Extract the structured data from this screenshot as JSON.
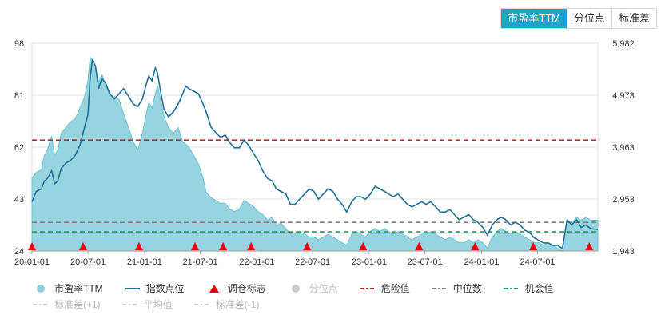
{
  "tabs": [
    {
      "label": "市盈率TTM",
      "active": true
    },
    {
      "label": "分位点",
      "active": false
    },
    {
      "label": "标准差",
      "active": false
    }
  ],
  "legend": {
    "row1": [
      {
        "label": "市盈率TTM",
        "symbol": "dot",
        "color": "#8ccfdb",
        "dim": false
      },
      {
        "label": "指数点位",
        "symbol": "line",
        "color": "#1f6f96",
        "dim": false
      },
      {
        "label": "调仓标志",
        "symbol": "triangle",
        "color": "#e8000b",
        "dim": false
      },
      {
        "label": "分位点",
        "symbol": "dot",
        "color": "#cccccc",
        "dim": true
      },
      {
        "label": "危险值",
        "symbol": "dash",
        "color": "#c0272d",
        "dim": false
      },
      {
        "label": "中位数",
        "symbol": "dash",
        "color": "#808080",
        "dim": false
      },
      {
        "label": "机会值",
        "symbol": "dash",
        "color": "#1f9e57",
        "dim": false
      }
    ],
    "row2": [
      {
        "label": "标准差(+1)",
        "symbol": "dash",
        "color": "#cccccc",
        "dim": true
      },
      {
        "label": "平均值",
        "symbol": "dash",
        "color": "#cccccc",
        "dim": true
      },
      {
        "label": "标准差(-1)",
        "symbol": "dash",
        "color": "#cccccc",
        "dim": true
      }
    ]
  },
  "chart_data": {
    "type": "area",
    "x_ticks": [
      "20-01-01",
      "20-07-01",
      "21-01-01",
      "21-07-01",
      "22-01-01",
      "22-07-01",
      "23-01-01",
      "23-07-01",
      "24-01-01",
      "24-07-01"
    ],
    "x_range": [
      "2020-01-01",
      "2025-01-13"
    ],
    "y_left": {
      "ticks": [
        "98",
        "81",
        "62",
        "43",
        "24"
      ],
      "range": [
        24,
        98
      ]
    },
    "y_right": {
      "ticks": [
        "5,982",
        "4,973",
        "3,963",
        "2,953",
        "1,943"
      ],
      "range": [
        1943,
        5982
      ]
    },
    "colors": {
      "pe_fill": "#8ccfdb",
      "pe_stroke": "#6fc3d2",
      "index": "#1f6f96",
      "marker": "#e8000b",
      "danger": "#c0272d",
      "median": "#808080",
      "opportunity": "#1f9e57",
      "grid": "#e6e6e6"
    },
    "reference_lines": {
      "danger": 63.5,
      "median": 34.2,
      "opportunity": 30.8
    },
    "pe_ttm": [
      [
        "2020-01-01",
        50
      ],
      [
        "2020-01-15",
        52
      ],
      [
        "2020-02-01",
        53
      ],
      [
        "2020-02-10",
        58
      ],
      [
        "2020-02-20",
        60
      ],
      [
        "2020-03-05",
        65
      ],
      [
        "2020-03-15",
        58
      ],
      [
        "2020-03-25",
        60
      ],
      [
        "2020-04-05",
        66
      ],
      [
        "2020-04-20",
        68
      ],
      [
        "2020-05-05",
        70
      ],
      [
        "2020-05-20",
        71
      ],
      [
        "2020-06-05",
        75
      ],
      [
        "2020-06-20",
        79
      ],
      [
        "2020-07-01",
        85
      ],
      [
        "2020-07-08",
        93
      ],
      [
        "2020-07-15",
        92
      ],
      [
        "2020-07-25",
        90
      ],
      [
        "2020-08-05",
        84
      ],
      [
        "2020-08-15",
        87
      ],
      [
        "2020-08-28",
        83
      ],
      [
        "2020-09-10",
        79
      ],
      [
        "2020-09-25",
        79
      ],
      [
        "2020-10-10",
        78
      ],
      [
        "2020-10-25",
        73
      ],
      [
        "2020-11-10",
        68
      ],
      [
        "2020-11-25",
        63
      ],
      [
        "2020-12-10",
        60
      ],
      [
        "2020-12-25",
        66
      ],
      [
        "2021-01-05",
        72
      ],
      [
        "2021-01-15",
        77
      ],
      [
        "2021-01-25",
        75
      ],
      [
        "2021-02-05",
        80
      ],
      [
        "2021-02-12",
        83
      ],
      [
        "2021-02-22",
        78
      ],
      [
        "2021-03-05",
        72
      ],
      [
        "2021-03-20",
        68
      ],
      [
        "2021-04-05",
        66
      ],
      [
        "2021-04-20",
        68
      ],
      [
        "2021-05-05",
        63
      ],
      [
        "2021-05-15",
        62
      ],
      [
        "2021-05-25",
        61
      ],
      [
        "2021-06-10",
        58
      ],
      [
        "2021-06-25",
        55
      ],
      [
        "2021-07-10",
        50
      ],
      [
        "2021-07-20",
        45
      ],
      [
        "2021-08-05",
        43
      ],
      [
        "2021-08-20",
        42
      ],
      [
        "2021-09-05",
        41
      ],
      [
        "2021-09-20",
        41
      ],
      [
        "2021-10-05",
        39
      ],
      [
        "2021-10-20",
        38
      ],
      [
        "2021-11-05",
        39
      ],
      [
        "2021-11-20",
        42
      ],
      [
        "2021-12-05",
        41
      ],
      [
        "2021-12-20",
        40
      ],
      [
        "2022-01-05",
        38
      ],
      [
        "2022-01-20",
        37
      ],
      [
        "2022-02-05",
        35
      ],
      [
        "2022-02-20",
        36
      ],
      [
        "2022-03-05",
        33
      ],
      [
        "2022-03-20",
        34
      ],
      [
        "2022-04-05",
        32
      ],
      [
        "2022-04-20",
        30
      ],
      [
        "2022-05-05",
        30
      ],
      [
        "2022-05-20",
        31
      ],
      [
        "2022-06-05",
        30
      ],
      [
        "2022-06-20",
        29
      ],
      [
        "2022-07-05",
        29
      ],
      [
        "2022-07-20",
        28
      ],
      [
        "2022-08-05",
        29
      ],
      [
        "2022-08-20",
        30
      ],
      [
        "2022-09-05",
        29
      ],
      [
        "2022-09-20",
        28
      ],
      [
        "2022-10-05",
        27
      ],
      [
        "2022-10-20",
        26
      ],
      [
        "2022-11-05",
        30
      ],
      [
        "2022-11-20",
        31
      ],
      [
        "2022-12-05",
        30
      ],
      [
        "2022-12-20",
        29
      ],
      [
        "2023-01-05",
        31
      ],
      [
        "2023-01-20",
        32
      ],
      [
        "2023-02-05",
        31
      ],
      [
        "2023-02-20",
        32
      ],
      [
        "2023-03-05",
        31
      ],
      [
        "2023-03-20",
        30
      ],
      [
        "2023-04-05",
        31
      ],
      [
        "2023-04-20",
        30
      ],
      [
        "2023-05-05",
        29
      ],
      [
        "2023-05-20",
        28
      ],
      [
        "2023-06-05",
        29
      ],
      [
        "2023-06-20",
        30
      ],
      [
        "2023-07-05",
        30
      ],
      [
        "2023-07-20",
        31
      ],
      [
        "2023-08-05",
        30
      ],
      [
        "2023-08-20",
        29
      ],
      [
        "2023-09-05",
        28
      ],
      [
        "2023-09-20",
        29
      ],
      [
        "2023-10-05",
        28
      ],
      [
        "2023-10-20",
        27
      ],
      [
        "2023-11-05",
        27
      ],
      [
        "2023-11-20",
        28
      ],
      [
        "2023-12-05",
        27
      ],
      [
        "2023-12-20",
        28
      ],
      [
        "2024-01-05",
        27
      ],
      [
        "2024-01-20",
        25
      ],
      [
        "2024-02-05",
        29
      ],
      [
        "2024-02-20",
        31
      ],
      [
        "2024-03-05",
        32
      ],
      [
        "2024-03-20",
        31
      ],
      [
        "2024-04-05",
        30
      ],
      [
        "2024-04-20",
        31
      ],
      [
        "2024-05-05",
        30
      ],
      [
        "2024-05-20",
        29
      ],
      [
        "2024-06-05",
        28
      ],
      [
        "2024-06-20",
        27
      ],
      [
        "2024-07-05",
        27
      ],
      [
        "2024-07-20",
        26
      ],
      [
        "2024-08-05",
        27
      ],
      [
        "2024-08-20",
        26
      ],
      [
        "2024-09-05",
        25
      ],
      [
        "2024-09-20",
        24
      ],
      [
        "2024-09-28",
        30
      ],
      [
        "2024-10-05",
        35
      ],
      [
        "2024-10-20",
        34
      ],
      [
        "2024-11-05",
        36
      ],
      [
        "2024-11-20",
        35
      ],
      [
        "2024-12-05",
        36
      ],
      [
        "2024-12-20",
        35
      ],
      [
        "2025-01-13",
        35
      ]
    ],
    "index_points": [
      [
        "2020-01-01",
        2900
      ],
      [
        "2020-01-15",
        3100
      ],
      [
        "2020-02-01",
        3150
      ],
      [
        "2020-02-10",
        3300
      ],
      [
        "2020-02-20",
        3350
      ],
      [
        "2020-03-05",
        3500
      ],
      [
        "2020-03-15",
        3250
      ],
      [
        "2020-03-25",
        3300
      ],
      [
        "2020-04-05",
        3550
      ],
      [
        "2020-04-20",
        3650
      ],
      [
        "2020-05-05",
        3700
      ],
      [
        "2020-05-20",
        3800
      ],
      [
        "2020-06-05",
        4000
      ],
      [
        "2020-06-20",
        4350
      ],
      [
        "2020-07-01",
        4600
      ],
      [
        "2020-07-08",
        5300
      ],
      [
        "2020-07-15",
        5650
      ],
      [
        "2020-07-25",
        5550
      ],
      [
        "2020-08-05",
        5100
      ],
      [
        "2020-08-15",
        5300
      ],
      [
        "2020-08-28",
        5200
      ],
      [
        "2020-09-10",
        5000
      ],
      [
        "2020-09-25",
        4900
      ],
      [
        "2020-10-10",
        5000
      ],
      [
        "2020-10-25",
        5100
      ],
      [
        "2020-11-10",
        4950
      ],
      [
        "2020-11-25",
        4800
      ],
      [
        "2020-12-10",
        4750
      ],
      [
        "2020-12-25",
        4900
      ],
      [
        "2021-01-05",
        5150
      ],
      [
        "2021-01-15",
        5350
      ],
      [
        "2021-01-25",
        5250
      ],
      [
        "2021-02-05",
        5500
      ],
      [
        "2021-02-12",
        5400
      ],
      [
        "2021-02-22",
        5050
      ],
      [
        "2021-03-05",
        4700
      ],
      [
        "2021-03-20",
        4550
      ],
      [
        "2021-04-05",
        4650
      ],
      [
        "2021-04-20",
        4800
      ],
      [
        "2021-05-05",
        5000
      ],
      [
        "2021-05-15",
        5150
      ],
      [
        "2021-05-25",
        5100
      ],
      [
        "2021-06-10",
        5050
      ],
      [
        "2021-06-25",
        5000
      ],
      [
        "2021-07-10",
        4800
      ],
      [
        "2021-07-20",
        4650
      ],
      [
        "2021-08-05",
        4350
      ],
      [
        "2021-08-20",
        4250
      ],
      [
        "2021-09-05",
        4150
      ],
      [
        "2021-09-20",
        4200
      ],
      [
        "2021-10-05",
        4050
      ],
      [
        "2021-10-20",
        3950
      ],
      [
        "2021-11-05",
        3950
      ],
      [
        "2021-11-20",
        4100
      ],
      [
        "2021-12-05",
        4000
      ],
      [
        "2021-12-20",
        3850
      ],
      [
        "2022-01-05",
        3700
      ],
      [
        "2022-01-20",
        3500
      ],
      [
        "2022-02-05",
        3350
      ],
      [
        "2022-02-20",
        3300
      ],
      [
        "2022-03-05",
        3150
      ],
      [
        "2022-03-20",
        3100
      ],
      [
        "2022-04-05",
        3050
      ],
      [
        "2022-04-20",
        2850
      ],
      [
        "2022-05-05",
        2850
      ],
      [
        "2022-05-20",
        2950
      ],
      [
        "2022-06-05",
        3050
      ],
      [
        "2022-06-20",
        3150
      ],
      [
        "2022-07-05",
        3100
      ],
      [
        "2022-07-20",
        2950
      ],
      [
        "2022-08-05",
        3050
      ],
      [
        "2022-08-20",
        3150
      ],
      [
        "2022-09-05",
        3100
      ],
      [
        "2022-09-20",
        2950
      ],
      [
        "2022-10-05",
        2850
      ],
      [
        "2022-10-20",
        2700
      ],
      [
        "2022-11-05",
        2900
      ],
      [
        "2022-11-20",
        3000
      ],
      [
        "2022-12-05",
        3000
      ],
      [
        "2022-12-20",
        2950
      ],
      [
        "2023-01-05",
        3050
      ],
      [
        "2023-01-20",
        3200
      ],
      [
        "2023-02-05",
        3150
      ],
      [
        "2023-02-20",
        3100
      ],
      [
        "2023-03-05",
        3050
      ],
      [
        "2023-03-20",
        3000
      ],
      [
        "2023-04-05",
        3050
      ],
      [
        "2023-04-20",
        2950
      ],
      [
        "2023-05-05",
        2850
      ],
      [
        "2023-05-20",
        2800
      ],
      [
        "2023-06-05",
        2850
      ],
      [
        "2023-06-20",
        2900
      ],
      [
        "2023-07-05",
        2850
      ],
      [
        "2023-07-20",
        2900
      ],
      [
        "2023-08-05",
        2800
      ],
      [
        "2023-08-20",
        2700
      ],
      [
        "2023-09-05",
        2700
      ],
      [
        "2023-09-20",
        2750
      ],
      [
        "2023-10-05",
        2650
      ],
      [
        "2023-10-20",
        2550
      ],
      [
        "2023-11-05",
        2600
      ],
      [
        "2023-11-20",
        2650
      ],
      [
        "2023-12-05",
        2550
      ],
      [
        "2023-12-20",
        2500
      ],
      [
        "2024-01-05",
        2400
      ],
      [
        "2024-01-20",
        2250
      ],
      [
        "2024-02-05",
        2450
      ],
      [
        "2024-02-20",
        2550
      ],
      [
        "2024-03-05",
        2600
      ],
      [
        "2024-03-20",
        2550
      ],
      [
        "2024-04-05",
        2450
      ],
      [
        "2024-04-20",
        2500
      ],
      [
        "2024-05-05",
        2450
      ],
      [
        "2024-05-20",
        2350
      ],
      [
        "2024-06-05",
        2300
      ],
      [
        "2024-06-20",
        2200
      ],
      [
        "2024-07-05",
        2150
      ],
      [
        "2024-07-20",
        2100
      ],
      [
        "2024-08-05",
        2100
      ],
      [
        "2024-08-20",
        2050
      ],
      [
        "2024-09-05",
        2050
      ],
      [
        "2024-09-20",
        1990
      ],
      [
        "2024-09-28",
        2300
      ],
      [
        "2024-10-05",
        2550
      ],
      [
        "2024-10-20",
        2450
      ],
      [
        "2024-11-05",
        2550
      ],
      [
        "2024-11-20",
        2400
      ],
      [
        "2024-12-05",
        2450
      ],
      [
        "2024-12-20",
        2380
      ],
      [
        "2025-01-13",
        2360
      ]
    ],
    "rebalance_dates": [
      "2020-01-01",
      "2020-06-15",
      "2020-12-14",
      "2021-06-14",
      "2021-09-13",
      "2021-12-13",
      "2022-06-13",
      "2022-12-12",
      "2023-06-12",
      "2023-12-11",
      "2024-06-17",
      "2024-12-16"
    ]
  }
}
